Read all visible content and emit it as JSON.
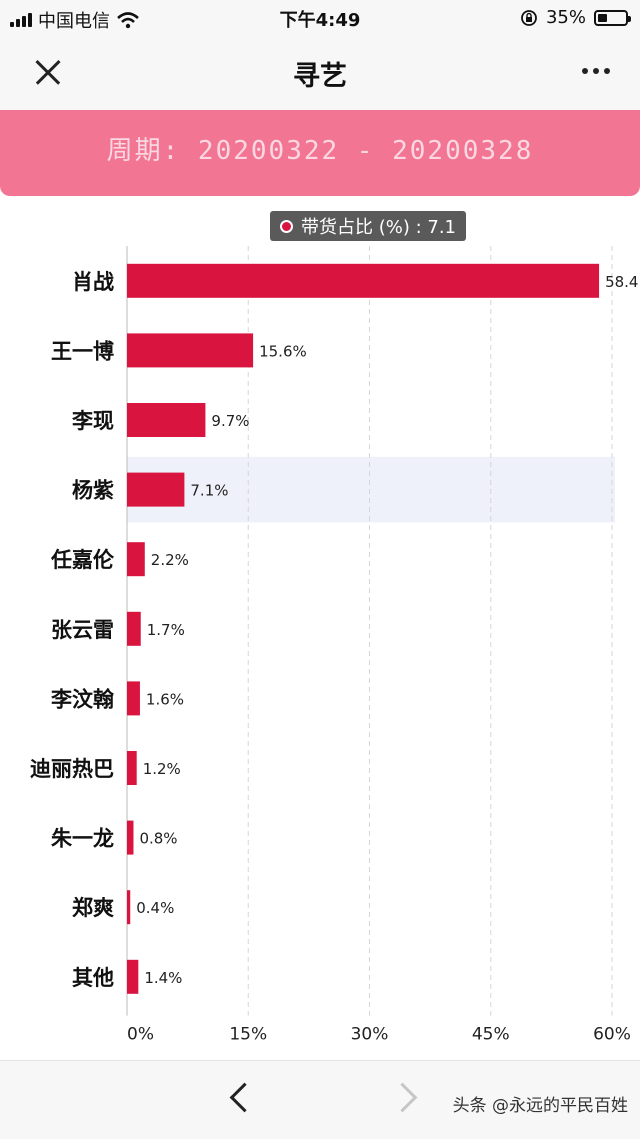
{
  "status_bar": {
    "carrier": "中国电信",
    "time": "下午4:49",
    "battery": "35%",
    "battery_level": 0.35
  },
  "nav": {
    "title": "寻艺"
  },
  "period": {
    "text": "周期: 20200322 - 20200328"
  },
  "tooltip": {
    "text": "带货占比 (%) : 7.1"
  },
  "highlight_index": 3,
  "chart_data": {
    "type": "bar",
    "orientation": "horizontal",
    "categories": [
      "肖战",
      "王一博",
      "李现",
      "杨紫",
      "任嘉伦",
      "张云雷",
      "李汶翰",
      "迪丽热巴",
      "朱一龙",
      "郑爽",
      "其他"
    ],
    "values": [
      58.4,
      15.6,
      9.7,
      7.1,
      2.2,
      1.7,
      1.6,
      1.2,
      0.8,
      0.4,
      1.4
    ],
    "value_labels": [
      "58.4",
      "15.6%",
      "9.7%",
      "7.1%",
      "2.2%",
      "1.7%",
      "1.6%",
      "1.2%",
      "0.8%",
      "0.4%",
      "1.4%"
    ],
    "series": [
      {
        "name": "带货占比 (%)",
        "values": [
          58.4,
          15.6,
          9.7,
          7.1,
          2.2,
          1.7,
          1.6,
          1.2,
          0.8,
          0.4,
          1.4
        ]
      }
    ],
    "x_ticks": [
      "0%",
      "15%",
      "30%",
      "45%",
      "60%"
    ],
    "xlim": [
      0,
      60
    ],
    "grid": true,
    "bar_color": "#d8143f"
  },
  "bottom": {
    "watermark": "头条 @永远的平民百姓"
  },
  "colors": {
    "accent": "#f27594",
    "bar": "#d8143f",
    "highlight": "#eef1f9"
  }
}
